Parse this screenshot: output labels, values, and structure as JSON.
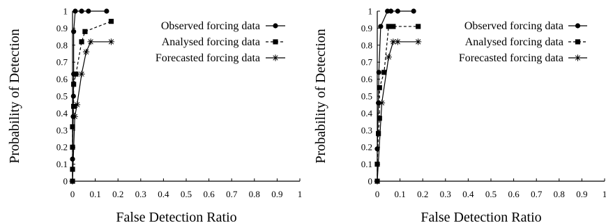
{
  "chart_data": [
    {
      "type": "line",
      "xlabel": "False Detection Ratio",
      "ylabel": "Probability of Detection",
      "xlim": [
        0,
        1
      ],
      "ylim": [
        0,
        1
      ],
      "x_ticks": [
        "0",
        "0.1",
        "0.2",
        "0.3",
        "0.4",
        "0.5",
        "0.6",
        "0.7",
        "0.8",
        "0.9",
        "1"
      ],
      "y_ticks": [
        "0",
        "0.1",
        "0.2",
        "0.3",
        "0.4",
        "0.5",
        "0.6",
        "0.7",
        "0.8",
        "0.9",
        "1"
      ],
      "grid": false,
      "legend_position": "top-right",
      "series": [
        {
          "name": "Observed forcing data",
          "marker": "circle",
          "line_style": "solid",
          "points": [
            [
              0,
              0
            ],
            [
              0,
              0.13
            ],
            [
              0.003,
              0.38
            ],
            [
              0.004,
              0.5
            ],
            [
              0.005,
              0.63
            ],
            [
              0.005,
              0.88
            ],
            [
              0.012,
              1.0
            ],
            [
              0.04,
              1.0
            ],
            [
              0.07,
              1.0
            ],
            [
              0.15,
              1.0
            ]
          ]
        },
        {
          "name": "Analysed forcing data",
          "marker": "square",
          "line_style": "dashed",
          "points": [
            [
              0,
              0
            ],
            [
              0,
              0.07
            ],
            [
              0,
              0.2
            ],
            [
              0,
              0.32
            ],
            [
              0.005,
              0.44
            ],
            [
              0.005,
              0.57
            ],
            [
              0.015,
              0.63
            ],
            [
              0.04,
              0.82
            ],
            [
              0.055,
              0.88
            ],
            [
              0.17,
              0.94
            ]
          ]
        },
        {
          "name": "Forecasted forcing data",
          "marker": "star",
          "line_style": "solid",
          "points": [
            [
              0,
              0
            ],
            [
              0.01,
              0.38
            ],
            [
              0.02,
              0.45
            ],
            [
              0.04,
              0.63
            ],
            [
              0.06,
              0.76
            ],
            [
              0.08,
              0.82
            ],
            [
              0.17,
              0.82
            ]
          ]
        }
      ]
    },
    {
      "type": "line",
      "xlabel": "False Detection Ratio",
      "ylabel": "Probability of Detection",
      "xlim": [
        0,
        1
      ],
      "ylim": [
        0,
        1
      ],
      "x_ticks": [
        "0",
        "0.1",
        "0.2",
        "0.3",
        "0.4",
        "0.5",
        "0.6",
        "0.7",
        "0.8",
        "0.9",
        "1"
      ],
      "y_ticks": [
        "0",
        "0.1",
        "0.2",
        "0.3",
        "0.4",
        "0.5",
        "0.6",
        "0.7",
        "0.8",
        "0.9",
        "1"
      ],
      "grid": false,
      "legend_position": "top-right",
      "series": [
        {
          "name": "Observed forcing data",
          "marker": "circle",
          "line_style": "solid",
          "points": [
            [
              0,
              0
            ],
            [
              0,
              0.19
            ],
            [
              0.005,
              0.46
            ],
            [
              0.007,
              0.64
            ],
            [
              0.015,
              0.91
            ],
            [
              0.045,
              1.0
            ],
            [
              0.06,
              1.0
            ],
            [
              0.09,
              1.0
            ],
            [
              0.16,
              1.0
            ]
          ]
        },
        {
          "name": "Analysed forcing data",
          "marker": "square",
          "line_style": "dashed",
          "points": [
            [
              0,
              0
            ],
            [
              0,
              0.1
            ],
            [
              0.005,
              0.28
            ],
            [
              0.01,
              0.37
            ],
            [
              0.01,
              0.55
            ],
            [
              0.03,
              0.64
            ],
            [
              0.05,
              0.91
            ],
            [
              0.07,
              0.91
            ],
            [
              0.18,
              0.91
            ]
          ]
        },
        {
          "name": "Forecasted forcing data",
          "marker": "star",
          "line_style": "solid",
          "points": [
            [
              0,
              0
            ],
            [
              0.02,
              0.46
            ],
            [
              0.05,
              0.73
            ],
            [
              0.07,
              0.82
            ],
            [
              0.09,
              0.82
            ],
            [
              0.18,
              0.82
            ]
          ]
        }
      ]
    }
  ]
}
